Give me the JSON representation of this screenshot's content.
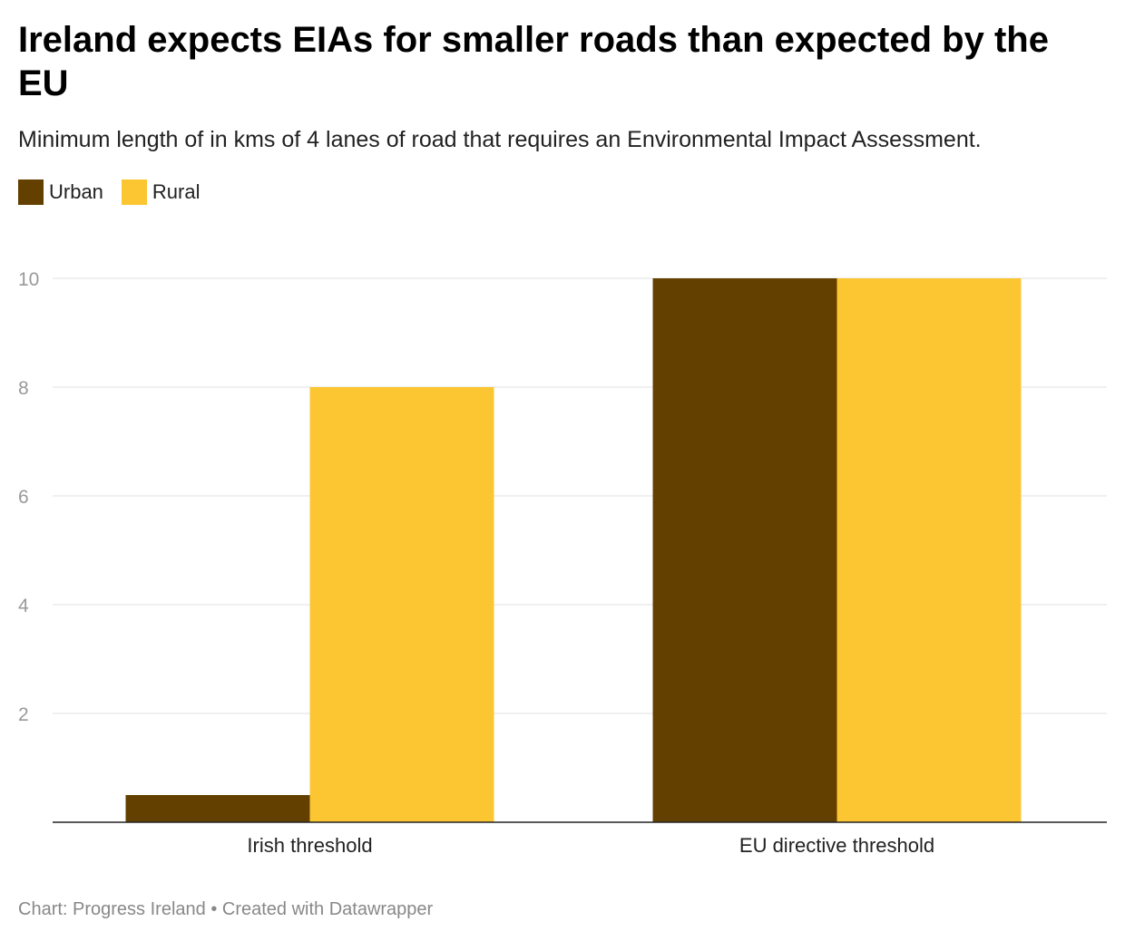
{
  "title": "Ireland expects EIAs for smaller roads than expected by the EU",
  "subtitle": "Minimum length of in kms of 4 lanes of road that requires an Environmental Impact Assessment.",
  "footer": "Chart: Progress Ireland • Created with Datawrapper",
  "colors": {
    "Urban": "#634000",
    "Rural": "#fcc633"
  },
  "chart_data": {
    "type": "bar",
    "title": "Ireland expects EIAs for smaller roads than expected by the EU",
    "categories": [
      "Irish threshold",
      "EU directive threshold"
    ],
    "series": [
      {
        "name": "Urban",
        "values": [
          0.5,
          10
        ]
      },
      {
        "name": "Rural",
        "values": [
          8,
          10
        ]
      }
    ],
    "ylim": [
      0,
      10
    ],
    "yticks": [
      2,
      4,
      6,
      8,
      10
    ],
    "grid": true,
    "legend": "top-left",
    "xlabel": "",
    "ylabel": ""
  }
}
